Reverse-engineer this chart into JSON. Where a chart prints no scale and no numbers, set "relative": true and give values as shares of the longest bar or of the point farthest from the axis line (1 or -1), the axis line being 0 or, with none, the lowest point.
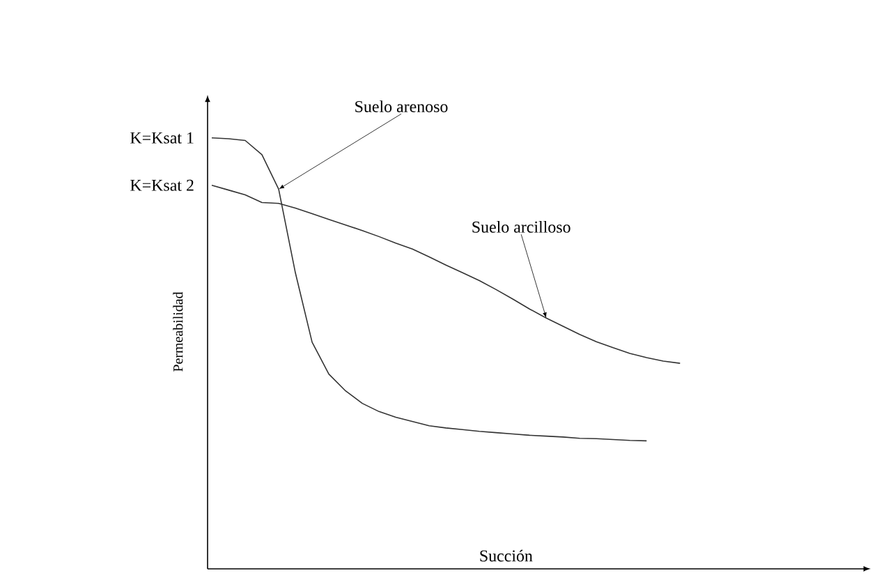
{
  "chart_data": {
    "type": "line",
    "relative": true,
    "xlabel": "Succión",
    "ylabel": "Permeabilidad",
    "categories": [
      null,
      null,
      null,
      null,
      null,
      null,
      null,
      null,
      null,
      null,
      null,
      null,
      null,
      null,
      null,
      null,
      null,
      null,
      null,
      null,
      null,
      null,
      null,
      null,
      null,
      null,
      null,
      null,
      null,
      null,
      null,
      null,
      null,
      null,
      null,
      null,
      null,
      null,
      null,
      null
    ],
    "series": [
      {
        "name": "Suelo arenoso",
        "color": "#333333",
        "values": [
          1.0,
          0.998,
          0.994,
          0.961,
          0.881,
          0.687,
          0.526,
          0.452,
          0.413,
          0.384,
          0.365,
          0.352,
          0.342,
          0.332,
          0.327,
          0.323,
          0.319,
          0.316,
          0.313,
          0.31,
          0.308,
          0.306,
          0.303,
          0.302,
          0.3,
          0.298,
          0.297,
          null,
          null,
          null,
          null,
          null,
          null,
          null,
          null,
          null,
          null,
          null,
          null,
          null
        ]
      },
      {
        "name": "Suelo arcilloso",
        "color": "#333333",
        "values": [
          0.89,
          0.879,
          0.868,
          0.85,
          0.848,
          0.837,
          0.824,
          0.811,
          0.798,
          0.785,
          0.771,
          0.756,
          0.742,
          0.724,
          0.705,
          0.687,
          0.669,
          0.648,
          0.626,
          0.603,
          0.582,
          0.563,
          0.544,
          0.527,
          0.513,
          0.5,
          0.49,
          0.482,
          0.477,
          null,
          null,
          null,
          null,
          null,
          null,
          null,
          null,
          null,
          null,
          null
        ]
      }
    ],
    "annotations": [
      "K=Ksat 1",
      "K=Ksat 2"
    ],
    "marker": "none",
    "line_style": "solid"
  }
}
